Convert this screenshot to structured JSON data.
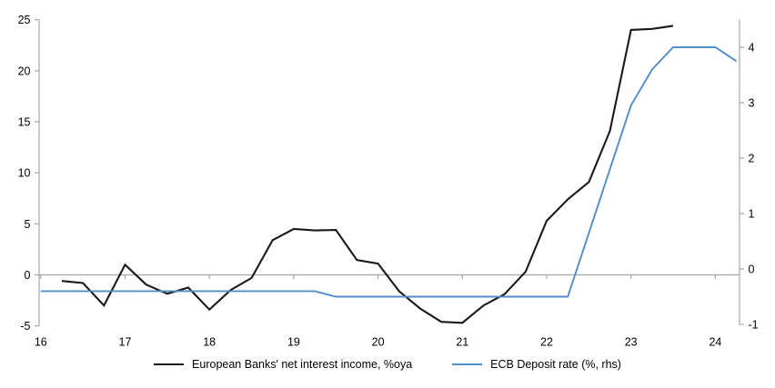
{
  "chart_data": {
    "type": "line",
    "title": "",
    "x_axis": {
      "ticks": [
        16,
        17,
        18,
        19,
        20,
        21,
        22,
        23,
        24
      ],
      "range": [
        16,
        24.3
      ],
      "tick_label_format": "two-digit year"
    },
    "left_axis": {
      "ticks": [
        25,
        20,
        15,
        10,
        5,
        0,
        -5
      ],
      "range": [
        -5,
        25
      ]
    },
    "right_axis": {
      "ticks": [
        4,
        3,
        2,
        1,
        0,
        -1
      ],
      "range": [
        -1,
        4.6
      ]
    },
    "gridlines": "single horizontal line at zero only",
    "legend_position": "bottom-center",
    "series": [
      {
        "name": "European Banks' net interest income, %oya",
        "axis": "left",
        "color": "#1a1a1a",
        "points": [
          [
            16.25,
            -0.6
          ],
          [
            16.5,
            -0.8
          ],
          [
            16.75,
            -3.0
          ],
          [
            17.0,
            1.0
          ],
          [
            17.25,
            -0.95
          ],
          [
            17.5,
            -1.85
          ],
          [
            17.75,
            -1.25
          ],
          [
            18.0,
            -3.4
          ],
          [
            18.25,
            -1.5
          ],
          [
            18.5,
            -0.3
          ],
          [
            18.75,
            3.4
          ],
          [
            19.0,
            4.5
          ],
          [
            19.25,
            4.35
          ],
          [
            19.5,
            4.4
          ],
          [
            19.75,
            1.45
          ],
          [
            20.0,
            1.1
          ],
          [
            20.25,
            -1.6
          ],
          [
            20.5,
            -3.3
          ],
          [
            20.75,
            -4.6
          ],
          [
            21.0,
            -4.7
          ],
          [
            21.25,
            -3.0
          ],
          [
            21.5,
            -1.9
          ],
          [
            21.75,
            0.3
          ],
          [
            22.0,
            5.3
          ],
          [
            22.25,
            7.4
          ],
          [
            22.5,
            9.1
          ],
          [
            22.75,
            14.1
          ],
          [
            23.0,
            24.0
          ],
          [
            23.25,
            24.1
          ],
          [
            23.5,
            24.4
          ]
        ]
      },
      {
        "name": "ECB Deposit rate (%, rhs)",
        "axis": "right",
        "color": "#538cc6",
        "points": [
          [
            16.0,
            -0.4
          ],
          [
            16.5,
            -0.4
          ],
          [
            17.0,
            -0.4
          ],
          [
            17.5,
            -0.4
          ],
          [
            18.0,
            -0.4
          ],
          [
            18.5,
            -0.4
          ],
          [
            19.0,
            -0.4
          ],
          [
            19.25,
            -0.4
          ],
          [
            19.5,
            -0.5
          ],
          [
            20.0,
            -0.5
          ],
          [
            20.5,
            -0.5
          ],
          [
            21.0,
            -0.5
          ],
          [
            21.5,
            -0.5
          ],
          [
            22.0,
            -0.5
          ],
          [
            22.25,
            -0.5
          ],
          [
            22.5,
            0.65
          ],
          [
            22.75,
            1.8
          ],
          [
            23.0,
            2.95
          ],
          [
            23.25,
            3.6
          ],
          [
            23.5,
            4.0
          ],
          [
            23.75,
            4.0
          ],
          [
            24.0,
            4.0
          ],
          [
            24.25,
            3.75
          ]
        ]
      }
    ]
  },
  "colors": {
    "axis_gray": "#a6a6a6",
    "background": "#ffffff",
    "text": "#000000"
  }
}
